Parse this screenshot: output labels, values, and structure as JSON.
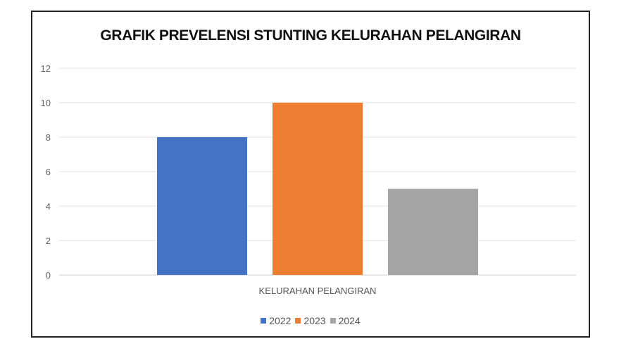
{
  "chart_data": {
    "type": "bar",
    "title": "GRAFIK PREVELENSI STUNTING KELURAHAN PELANGIRAN",
    "categories": [
      "KELURAHAN PELANGIRAN"
    ],
    "series": [
      {
        "name": "2022",
        "values": [
          8
        ],
        "color": "#4472c4"
      },
      {
        "name": "2023",
        "values": [
          10
        ],
        "color": "#ed7d31"
      },
      {
        "name": "2024",
        "values": [
          5
        ],
        "color": "#a5a5a5"
      }
    ],
    "ylim": [
      0,
      12
    ],
    "yticks": [
      0,
      2,
      4,
      6,
      8,
      10,
      12
    ],
    "grid": true,
    "legend_position": "bottom"
  }
}
